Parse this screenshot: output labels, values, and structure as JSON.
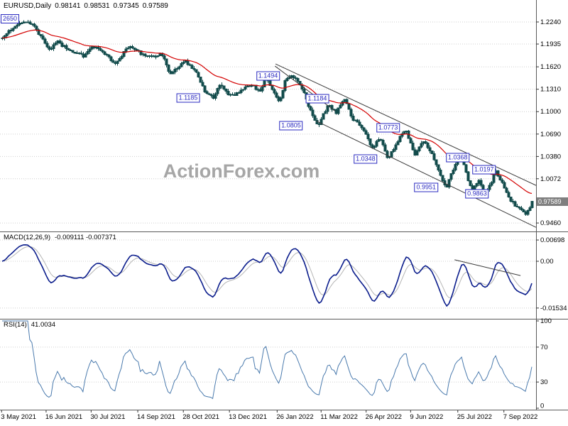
{
  "header": {
    "symbol": "EURUSD,Daily",
    "open": "0.98141",
    "high": "0.98531",
    "low": "0.97345",
    "close": "0.97589",
    "tag": "2650"
  },
  "watermark": "ActionForex.com",
  "price_tag": "0.97589",
  "indicators": {
    "macd_label": "MACD(12,26,9)",
    "macd_values": "-0.009111 -0.007371",
    "rsi_label": "RSI(14)",
    "rsi_value": "41.0034"
  },
  "colors": {
    "candle": "#124b4b",
    "ma": "#d40000",
    "macd_main": "#0b1d8c",
    "macd_signal": "#b5b5b5",
    "rsi": "#4a7aad",
    "grid": "#cfcfcf",
    "separator": "#5a5a5a",
    "trendline": "#3c3c3c",
    "label_blue": "#2a2ac0",
    "price_tag_bg": "#7f7f7f"
  },
  "chart_data": {
    "type": "candlestick",
    "title": "EURUSD,Daily",
    "timeframe": "Daily",
    "ohlc_display": {
      "open": 0.98141,
      "high": 0.98531,
      "low": 0.97345,
      "close": 0.97589
    },
    "legend_position": "none",
    "grid": true,
    "price_axis_ticks": [
      {
        "v": 1.224,
        "label": "1.2240"
      },
      {
        "v": 1.1935,
        "label": "1.1935"
      },
      {
        "v": 1.162,
        "label": "1.1620"
      },
      {
        "v": 1.131,
        "label": "1.1310"
      },
      {
        "v": 1.1,
        "label": "1.1000"
      },
      {
        "v": 1.069,
        "label": "1.0690"
      },
      {
        "v": 1.038,
        "label": "1.0380"
      },
      {
        "v": 1.0072,
        "label": "1.0072"
      },
      {
        "v": 0.946,
        "label": "0.9460"
      }
    ],
    "current_price": {
      "v": 0.97589,
      "label": "0.97589"
    },
    "x_axis_dates": [
      {
        "label": "3 May 2021",
        "x": 0.003
      },
      {
        "label": "16 Jun 2021",
        "x": 0.086
      },
      {
        "label": "30 Jul 2021",
        "x": 0.17
      },
      {
        "label": "14 Sep 2021",
        "x": 0.257
      },
      {
        "label": "28 Oct 2021",
        "x": 0.342
      },
      {
        "label": "13 Dec 2021",
        "x": 0.428
      },
      {
        "label": "26 Jan 2022",
        "x": 0.517
      },
      {
        "label": "11 Mar 2022",
        "x": 0.599
      },
      {
        "label": "26 Apr 2022",
        "x": 0.683
      },
      {
        "label": "9 Jun 2022",
        "x": 0.766
      },
      {
        "label": "25 Jul 2022",
        "x": 0.854
      },
      {
        "label": "7 Sep 2022",
        "x": 0.94
      }
    ],
    "price_keypoints": [
      [
        0.0,
        1.203
      ],
      [
        0.015,
        1.213
      ],
      [
        0.043,
        1.2255
      ],
      [
        0.06,
        1.218
      ],
      [
        0.089,
        1.1855
      ],
      [
        0.103,
        1.197
      ],
      [
        0.125,
        1.185
      ],
      [
        0.153,
        1.1765
      ],
      [
        0.171,
        1.1905
      ],
      [
        0.195,
        1.18
      ],
      [
        0.212,
        1.167
      ],
      [
        0.239,
        1.1905
      ],
      [
        0.262,
        1.18
      ],
      [
        0.285,
        1.175
      ],
      [
        0.3,
        1.181
      ],
      [
        0.315,
        1.153
      ],
      [
        0.346,
        1.169
      ],
      [
        0.365,
        1.156
      ],
      [
        0.38,
        1.13
      ],
      [
        0.398,
        1.1186
      ],
      [
        0.41,
        1.138
      ],
      [
        0.425,
        1.125
      ],
      [
        0.439,
        1.123
      ],
      [
        0.455,
        1.132
      ],
      [
        0.47,
        1.138
      ],
      [
        0.485,
        1.128
      ],
      [
        0.497,
        1.148
      ],
      [
        0.51,
        1.132
      ],
      [
        0.524,
        1.1125
      ],
      [
        0.535,
        1.144
      ],
      [
        0.549,
        1.1494
      ],
      [
        0.565,
        1.135
      ],
      [
        0.585,
        1.095
      ],
      [
        0.598,
        1.0806
      ],
      [
        0.615,
        1.11
      ],
      [
        0.63,
        1.098
      ],
      [
        0.645,
        1.1184
      ],
      [
        0.662,
        1.09
      ],
      [
        0.68,
        1.079
      ],
      [
        0.699,
        1.048
      ],
      [
        0.713,
        1.064
      ],
      [
        0.728,
        1.035
      ],
      [
        0.745,
        1.056
      ],
      [
        0.761,
        1.0773
      ],
      [
        0.778,
        1.04
      ],
      [
        0.795,
        1.06
      ],
      [
        0.81,
        1.043
      ],
      [
        0.825,
        1.015
      ],
      [
        0.838,
        0.9952
      ],
      [
        0.855,
        1.027
      ],
      [
        0.868,
        1.0368
      ],
      [
        0.88,
        1.005
      ],
      [
        0.888,
        0.992
      ],
      [
        0.9,
        1.005
      ],
      [
        0.91,
        0.9863
      ],
      [
        0.922,
        0.999
      ],
      [
        0.93,
        1.0197
      ],
      [
        0.942,
        1.004
      ],
      [
        0.955,
        0.983
      ],
      [
        0.968,
        0.97
      ],
      [
        0.98,
        0.964
      ],
      [
        0.99,
        0.958
      ],
      [
        1.0,
        0.97589
      ]
    ],
    "level_labels": [
      {
        "label": "1.1494",
        "x": 0.5,
        "v": 1.1494
      },
      {
        "label": "1.1185",
        "x": 0.351,
        "v": 1.1185
      },
      {
        "label": "1.1184",
        "x": 0.592,
        "v": 1.1184
      },
      {
        "label": "1.0805",
        "x": 0.543,
        "v": 1.0805
      },
      {
        "label": "1.0773",
        "x": 0.724,
        "v": 1.0773
      },
      {
        "label": "1.0348",
        "x": 0.682,
        "v": 1.0348
      },
      {
        "label": "1.0368",
        "x": 0.854,
        "v": 1.0368
      },
      {
        "label": "1.0197",
        "x": 0.903,
        "v": 1.0197
      },
      {
        "label": "0.9951",
        "x": 0.795,
        "v": 0.9951
      },
      {
        "label": "0.9863",
        "x": 0.89,
        "v": 0.9863
      }
    ],
    "trendlines": [
      [
        0.514,
        1.166,
        1.0,
        0.998
      ],
      [
        0.59,
        1.087,
        1.0,
        0.94
      ],
      [
        0.513,
        1.163,
        0.625,
        1.101
      ]
    ],
    "moving_average": {
      "type": "EMA",
      "color": "red"
    },
    "macd": {
      "label": "MACD(12,26,9)",
      "values": [
        -0.009111,
        -0.007371
      ],
      "ticks": [
        {
          "v": 0.00698,
          "label": "0.00698"
        },
        {
          "v": 0.0,
          "label": "0.00"
        },
        {
          "v": -0.01534,
          "label": "-0.01534"
        }
      ],
      "trendline": [
        0.848,
        0.0005,
        0.971,
        -0.0047
      ]
    },
    "rsi": {
      "label": "RSI(14)",
      "value": 41.0034,
      "ticks": [
        {
          "v": 100,
          "label": "100"
        },
        {
          "v": 70,
          "label": "70"
        },
        {
          "v": 30,
          "label": "30"
        },
        {
          "v": 0,
          "label": "0"
        }
      ],
      "guides": [
        70,
        30
      ]
    }
  }
}
